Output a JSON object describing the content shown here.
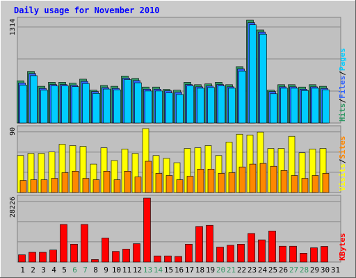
{
  "colors": {
    "outer": "#cacaca",
    "plot": "#c0c0c0",
    "grid": "#888888",
    "title": "#0000ff",
    "hits": "#339966",
    "files": "#3366ff",
    "pages": "#00ccff",
    "visits": "#ffff00",
    "sites": "#ff8800",
    "kbytes": "#ff0000",
    "weekend_label": "#339966",
    "weekday_label": "#000000"
  },
  "chart_data": {
    "type": "bar",
    "title": "Daily usage for November 2010",
    "categories": [
      "1",
      "2",
      "3",
      "4",
      "5",
      "6",
      "7",
      "8",
      "9",
      "10",
      "11",
      "12",
      "13",
      "14",
      "15",
      "16",
      "17",
      "18",
      "19",
      "20",
      "21",
      "22",
      "23",
      "24",
      "25",
      "26",
      "27",
      "28",
      "29",
      "30",
      "31"
    ],
    "weekend_days": [
      "6",
      "7",
      "13",
      "14",
      "20",
      "21",
      "27",
      "28"
    ],
    "panels": [
      {
        "max_label": "1314",
        "ylim": [
          0,
          1314
        ],
        "side_labels": [
          {
            "text": "Hits",
            "color": "#339966"
          },
          {
            "text": "/",
            "color": "#000000"
          },
          {
            "text": "Files",
            "color": "#3366ff"
          },
          {
            "text": "/",
            "color": "#000000"
          },
          {
            "text": "Pages",
            "color": "#00ccff"
          }
        ],
        "series": [
          {
            "name": "Hits",
            "color": "#339966",
            "values": [
              540,
              660,
              470,
              520,
              520,
              510,
              560,
              420,
              480,
              470,
              600,
              570,
              460,
              460,
              430,
              420,
              520,
              490,
              500,
              520,
              490,
              720,
              1314,
              1190,
              420,
              490,
              490,
              460,
              490,
              470,
              0
            ]
          },
          {
            "name": "Files",
            "color": "#3366ff",
            "values": [
              530,
              650,
              460,
              510,
              510,
              500,
              550,
              420,
              470,
              460,
              590,
              560,
              450,
              450,
              430,
              410,
              510,
              480,
              490,
              510,
              480,
              710,
              1300,
              1180,
              420,
              480,
              480,
              450,
              480,
              460,
              0
            ]
          },
          {
            "name": "Pages",
            "color": "#00ccff",
            "values": [
              520,
              640,
              455,
              510,
              510,
              500,
              540,
              415,
              470,
              460,
              590,
              550,
              445,
              445,
              420,
              400,
              510,
              480,
              490,
              510,
              480,
              700,
              1290,
              1170,
              410,
              480,
              480,
              450,
              480,
              460,
              0
            ]
          }
        ]
      },
      {
        "max_label": "90",
        "ylim": [
          0,
          90
        ],
        "side_labels": [
          {
            "text": "Visits",
            "color": "#ffff00"
          },
          {
            "text": "/",
            "color": "#000000"
          },
          {
            "text": "Sites",
            "color": "#ff8800"
          }
        ],
        "series": [
          {
            "name": "Visits",
            "color": "#ffff00",
            "values": [
              52,
              55,
              55,
              57,
              68,
              66,
              65,
              40,
              63,
              45,
              61,
              55,
              90,
              52,
              48,
              42,
              62,
              63,
              66,
              52,
              71,
              82,
              81,
              85,
              62,
              62,
              79,
              56,
              61,
              62,
              0
            ]
          },
          {
            "name": "Sites",
            "color": "#ff8800",
            "values": [
              17,
              18,
              18,
              20,
              28,
              30,
              20,
              18,
              30,
              18,
              30,
              22,
              44,
              27,
              24,
              18,
              23,
              33,
              33,
              27,
              28,
              36,
              40,
              41,
              37,
              31,
              24,
              20,
              24,
              27,
              0
            ]
          }
        ]
      },
      {
        "max_label": "28226",
        "ylim": [
          0,
          28226
        ],
        "side_labels": [
          {
            "text": "KBytes",
            "color": "#ff0000"
          }
        ],
        "series": [
          {
            "name": "KBytes",
            "color": "#ff0000",
            "values": [
              3200,
              4300,
              4300,
              5300,
              16600,
              7900,
              16600,
              1100,
              10600,
              4700,
              5700,
              8100,
              28226,
              2700,
              2700,
              2500,
              7900,
              15700,
              16200,
              6600,
              7400,
              7900,
              12600,
              9800,
              13700,
              7000,
              7000,
              3900,
              6300,
              6900,
              0
            ]
          }
        ]
      }
    ]
  }
}
